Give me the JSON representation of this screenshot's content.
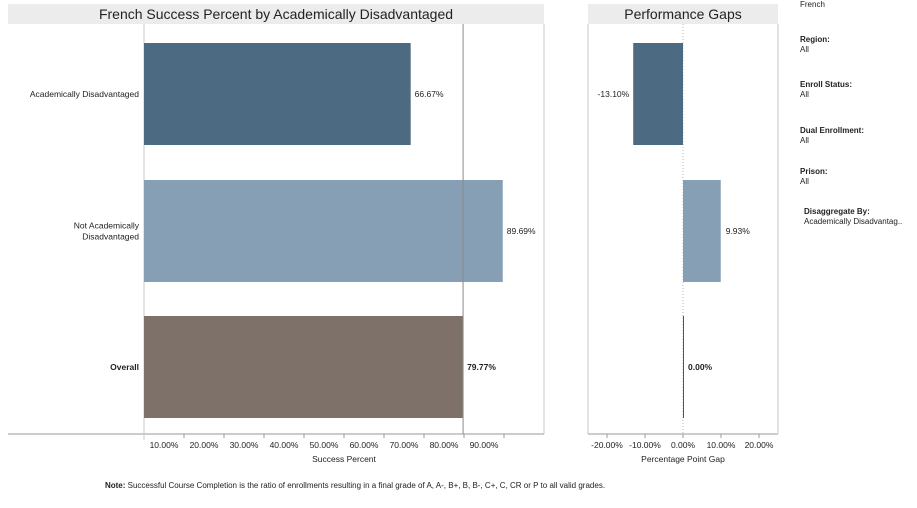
{
  "chart_data": [
    {
      "type": "bar",
      "orientation": "horizontal",
      "title": "French Success Percent by Academically Disadvantaged",
      "xlabel": "Success Percent",
      "categories": [
        "Academically Disadvantaged",
        "Not Academically Disadvantaged",
        "Overall"
      ],
      "values": [
        66.67,
        89.69,
        79.77
      ],
      "value_labels": [
        "66.67%",
        "89.69%",
        "79.77%"
      ],
      "colors": [
        "#4d6a83",
        "#879fb4",
        "#7d7169"
      ],
      "xlim": [
        0,
        100
      ],
      "xticks": [
        10,
        20,
        30,
        40,
        50,
        60,
        70,
        80,
        90
      ],
      "xtick_labels": [
        "10.00%",
        "20.00%",
        "30.00%",
        "40.00%",
        "50.00%",
        "60.00%",
        "70.00%",
        "80.00%",
        "90.00%"
      ],
      "reference_line": 79.77
    },
    {
      "type": "bar",
      "orientation": "horizontal",
      "title": "Performance Gaps",
      "xlabel": "Percentage Point Gap",
      "categories": [
        "Academically Disadvantaged",
        "Not Academically Disadvantaged",
        "Overall"
      ],
      "values": [
        -13.1,
        9.93,
        0.0
      ],
      "value_labels": [
        "-13.10%",
        "9.93%",
        "0.00%"
      ],
      "colors": [
        "#4d6a83",
        "#879fb4",
        "#4d6a83"
      ],
      "xlim": [
        -25,
        25
      ],
      "xticks": [
        -20,
        -10,
        0,
        10,
        20
      ],
      "xtick_labels": [
        "-20.00%",
        "-10.00%",
        "0.00%",
        "10.00%",
        "20.00%"
      ]
    }
  ],
  "filters": {
    "course": "French",
    "items": [
      {
        "label": "Region:",
        "value": "All"
      },
      {
        "label": "Enroll Status:",
        "value": "All"
      },
      {
        "label": "Dual Enrollment:",
        "value": "All"
      },
      {
        "label": "Prison:",
        "value": "All"
      },
      {
        "label": "Disaggregate By:",
        "value": "Academically Disadvantag.."
      }
    ]
  },
  "note": {
    "label": "Note:",
    "text": "Successful Course Completion is the ratio of enrollments resulting in a final grade of A, A-, B+, B, B-, C+, C, CR or P to all valid grades."
  }
}
